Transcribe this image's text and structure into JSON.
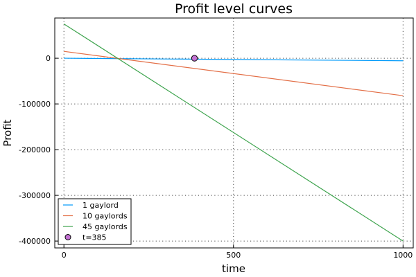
{
  "chart_data": {
    "type": "line",
    "title": "Profit level curves",
    "xlabel": "time",
    "ylabel": "Profit",
    "xlim": [
      -27,
      1030
    ],
    "ylim": [
      -415000,
      88000
    ],
    "xticks": [
      0,
      500,
      1000
    ],
    "xtick_labels": [
      "0",
      "500",
      "1000"
    ],
    "yticks": [
      0,
      -100000,
      -200000,
      -300000,
      -400000
    ],
    "ytick_labels": [
      "0",
      "-100000",
      "-200000",
      "-300000",
      "-400000"
    ],
    "grid": true,
    "legend_position": "bottom-left",
    "series": [
      {
        "name": "1 gaylord",
        "color": "#009AFA",
        "x": [
          0,
          1000
        ],
        "y": [
          0,
          -5500
        ]
      },
      {
        "name": "10 gaylords",
        "color": "#E36F47",
        "x": [
          0,
          1000
        ],
        "y": [
          15000,
          -82000
        ]
      },
      {
        "name": "45 gaylords",
        "color": "#3EA44E",
        "x": [
          0,
          1000
        ],
        "y": [
          75000,
          -400000
        ]
      }
    ],
    "points": [
      {
        "name": "t=385",
        "color": "#C271D2",
        "x": 385,
        "y": 0
      }
    ]
  }
}
